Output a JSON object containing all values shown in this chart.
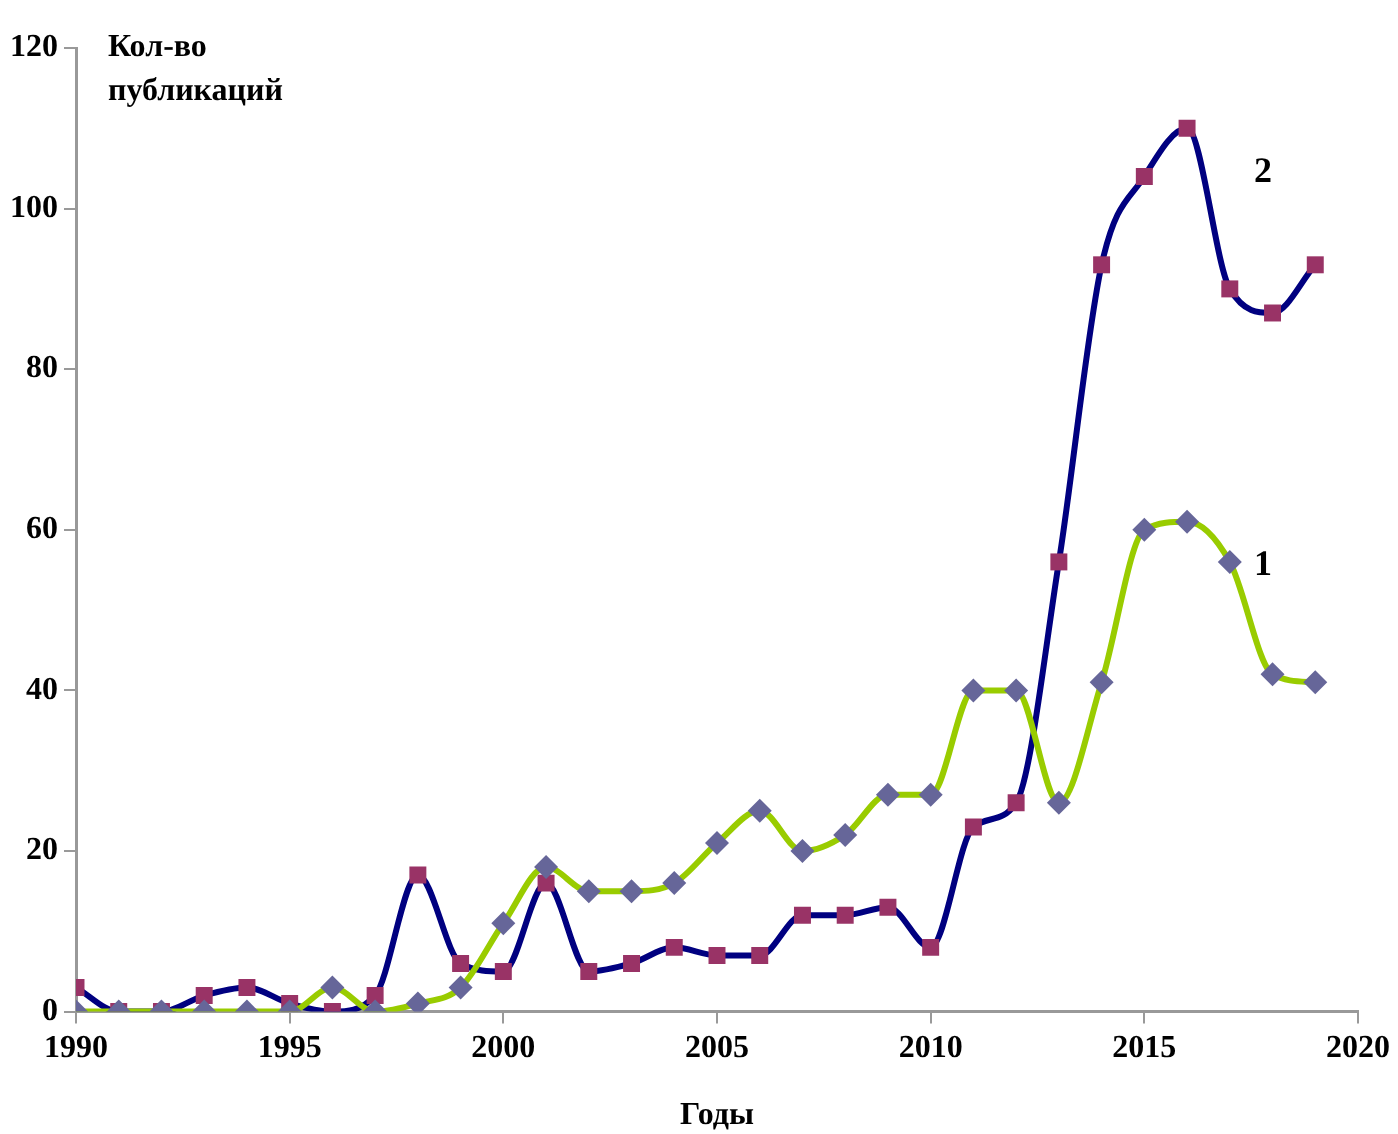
{
  "chart_data": {
    "type": "line",
    "xlabel": "Годы",
    "ylabel": "Кол-во публикаций",
    "x": [
      1990,
      1991,
      1992,
      1993,
      1994,
      1995,
      1996,
      1997,
      1998,
      1999,
      2000,
      2001,
      2002,
      2003,
      2004,
      2005,
      2006,
      2007,
      2008,
      2009,
      2010,
      2011,
      2012,
      2013,
      2014,
      2015,
      2016,
      2017,
      2018,
      2019
    ],
    "xlim": [
      1990,
      2020
    ],
    "xticks": [
      1990,
      1995,
      2000,
      2005,
      2010,
      2015,
      2020
    ],
    "ylim": [
      0,
      120
    ],
    "yticks": [
      0,
      20,
      40,
      60,
      80,
      100,
      120
    ],
    "grid": false,
    "legend": false,
    "series": [
      {
        "name": "1",
        "color": "#99cc00",
        "marker": "diamond",
        "colors": [
          "#666699",
          "#666699",
          "#666699",
          "#666699",
          "#666699",
          "#666699",
          "#666699",
          "#666699",
          "#666699",
          "#666699",
          "#666699",
          "#666699",
          "#666699",
          "#666699",
          "#666699",
          "#666699",
          "#666699",
          "#666699",
          "#666699",
          "#666699",
          "#666699",
          "#666699",
          "#666699",
          "#666699",
          "#666699",
          "#666699",
          "#666699",
          "#666699",
          "#666699",
          "#666699"
        ],
        "values": [
          0,
          0,
          0,
          0,
          0,
          0,
          3,
          0,
          1,
          3,
          11,
          18,
          15,
          15,
          16,
          21,
          25,
          20,
          22,
          27,
          27,
          40,
          40,
          26,
          41,
          60,
          61,
          56,
          42,
          41
        ]
      },
      {
        "name": "2",
        "color": "#000080",
        "marker": "square",
        "colors": [
          "#993366",
          "#993366",
          "#993366",
          "#993366",
          "#993366",
          "#993366",
          "#993366",
          "#993366",
          "#993366",
          "#993366",
          "#993366",
          "#993366",
          "#993366",
          "#993366",
          "#993366",
          "#993366",
          "#993366",
          "#993366",
          "#993366",
          "#993366",
          "#993366",
          "#993366",
          "#993366",
          "#993366",
          "#993366",
          "#993366",
          "#993366",
          "#993366",
          "#993366",
          "#993366"
        ],
        "values": [
          3,
          0,
          0,
          2,
          3,
          1,
          0,
          2,
          17,
          6,
          5,
          16,
          5,
          6,
          8,
          7,
          7,
          12,
          12,
          13,
          8,
          23,
          26,
          56,
          93,
          104,
          110,
          90,
          87,
          93
        ]
      }
    ]
  }
}
